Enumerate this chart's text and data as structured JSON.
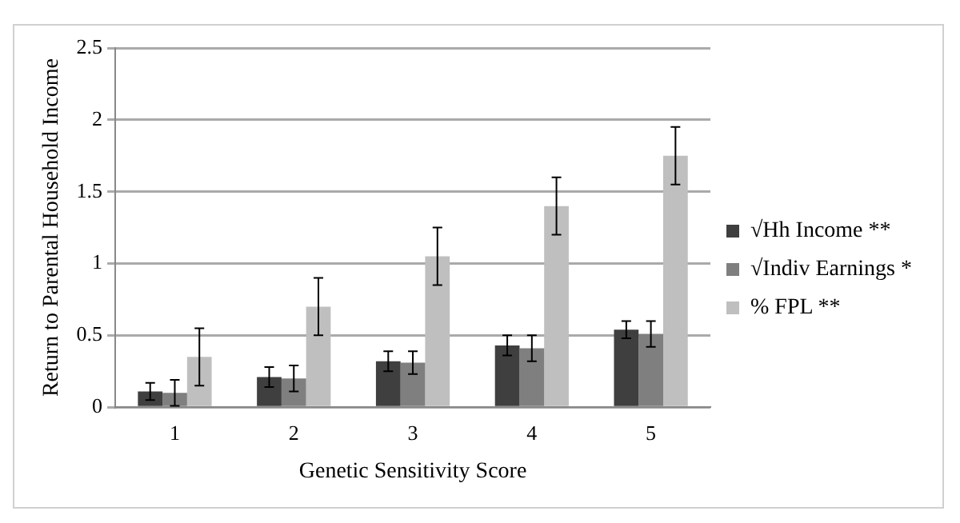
{
  "chart_data": {
    "type": "bar",
    "xlabel": "Genetic Sensitivity Score",
    "ylabel": "Return to Parental Household Income",
    "categories": [
      "1",
      "2",
      "3",
      "4",
      "5"
    ],
    "series": [
      {
        "name": "√Hh Income **",
        "color": "#3f3f3f",
        "values": [
          0.11,
          0.21,
          0.32,
          0.43,
          0.54
        ],
        "errors": [
          0.06,
          0.07,
          0.07,
          0.07,
          0.06
        ]
      },
      {
        "name": "√Indiv Earnings *",
        "color": "#7f7f7f",
        "values": [
          0.1,
          0.2,
          0.31,
          0.41,
          0.51
        ],
        "errors": [
          0.09,
          0.09,
          0.08,
          0.09,
          0.09
        ]
      },
      {
        "name": "% FPL **",
        "color": "#bfbfbf",
        "values": [
          0.35,
          0.7,
          1.05,
          1.4,
          1.75
        ],
        "errors": [
          0.2,
          0.2,
          0.2,
          0.2,
          0.2
        ]
      }
    ],
    "ylim": [
      0,
      2.5
    ],
    "yticks": [
      0,
      0.5,
      1,
      1.5,
      2,
      2.5
    ],
    "grid": "y",
    "legend": "right"
  }
}
